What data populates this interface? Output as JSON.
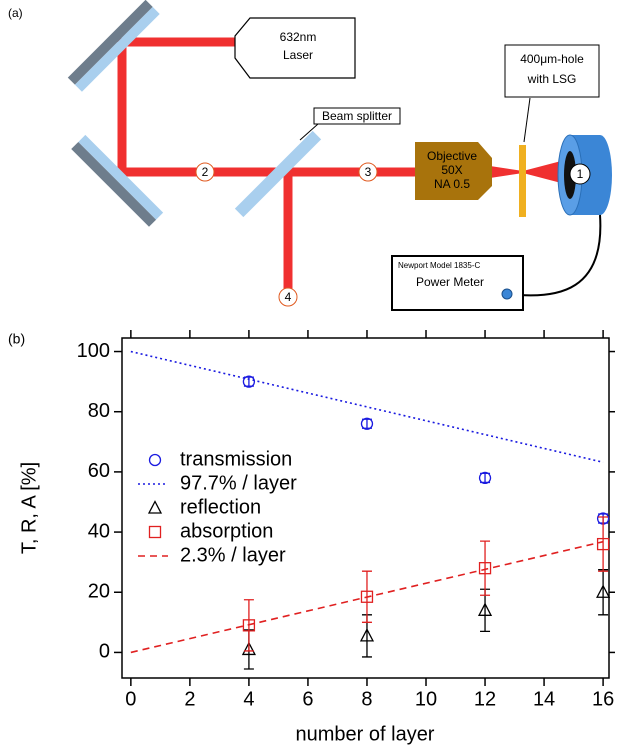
{
  "panel_a": {
    "label": "(a)",
    "laser": [
      "632nm",
      "Laser"
    ],
    "beam_splitter": "Beam splitter",
    "objective": [
      "Objective",
      "50X",
      "NA 0.5"
    ],
    "hole": [
      "400μm-hole",
      "with LSG"
    ],
    "meter_model": "Newport Model 1835-C",
    "meter": "Power Meter",
    "points": [
      "1",
      "2",
      "3",
      "4"
    ]
  },
  "chart_data": {
    "type": "scatter",
    "panel_label": "(b)",
    "x_label": "number of layer",
    "y_label": "T, R, A [%]",
    "xlim": [
      -0.3,
      16.2
    ],
    "ylim": [
      -8.5,
      104.5
    ],
    "xticks": [
      0,
      2,
      4,
      6,
      8,
      10,
      12,
      14,
      16
    ],
    "yticks": [
      0,
      20,
      40,
      60,
      80,
      100
    ],
    "series": [
      {
        "name": "transmission",
        "kind": "markers",
        "marker": "circle",
        "color": "#1a1ae0",
        "x": [
          4,
          8,
          12,
          16
        ],
        "values": [
          90,
          76,
          58,
          44.5
        ],
        "errors": [
          1.5,
          1.5,
          1.5,
          1.5
        ]
      },
      {
        "name": "97.7% / layer",
        "kind": "line",
        "dash": "dotted",
        "color": "#1a1ae0",
        "x": [
          0,
          16
        ],
        "values": [
          100,
          63.2
        ]
      },
      {
        "name": "reflection",
        "kind": "markers",
        "marker": "triangle",
        "color": "#000000",
        "x": [
          4,
          8,
          12,
          16
        ],
        "values": [
          1,
          5.5,
          14,
          20
        ],
        "errors": [
          6.5,
          7,
          7,
          7.5
        ]
      },
      {
        "name": "absorption",
        "kind": "markers",
        "marker": "square",
        "color": "#e02020",
        "x": [
          4,
          8,
          12,
          16
        ],
        "values": [
          9,
          18.5,
          28,
          36
        ],
        "errors": [
          8.5,
          8.5,
          9,
          9
        ]
      },
      {
        "name": "2.3% / layer",
        "kind": "line",
        "dash": "dashed",
        "color": "#e02020",
        "x": [
          0,
          16
        ],
        "values": [
          0,
          36.8
        ]
      }
    ]
  }
}
